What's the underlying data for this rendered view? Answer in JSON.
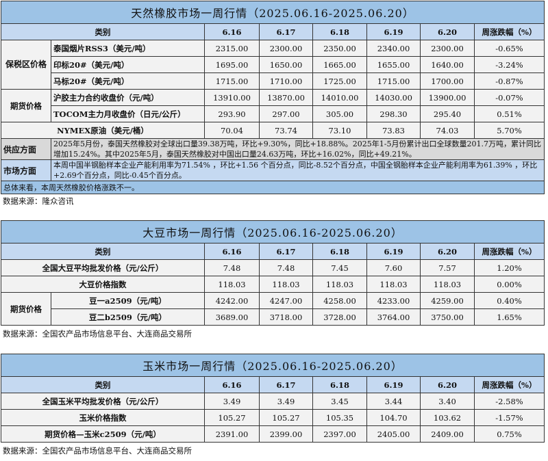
{
  "rubber": {
    "title": "天然橡胶市场一周行情（2025.06.16-2025.06.20）",
    "headers": [
      "类别",
      "6.16",
      "6.17",
      "6.18",
      "6.19",
      "6.20",
      "周涨跌幅（%）"
    ],
    "group_bonded": "保税区价格",
    "group_futures": "期货价格",
    "rows": [
      {
        "name": "泰国烟片RSS3（美元/吨）",
        "values": [
          "2315.00",
          "2300.00",
          "2350.00",
          "2340.00",
          "2300.00",
          "-0.65%"
        ]
      },
      {
        "name": "印标20#（美元/吨）",
        "values": [
          "1695.00",
          "1650.00",
          "1665.00",
          "1655.00",
          "1640.00",
          "-3.24%"
        ]
      },
      {
        "name": "马标20#（美元/吨）",
        "values": [
          "1715.00",
          "1710.00",
          "1725.00",
          "1715.00",
          "1700.00",
          "-0.87%"
        ]
      },
      {
        "name": "沪胶主力合约收盘价（元/吨）",
        "values": [
          "13910.00",
          "13870.00",
          "14010.00",
          "14030.00",
          "13900.00",
          "-0.07%"
        ]
      },
      {
        "name": "TOCOM主力月收盘价（日元/公斤）",
        "values": [
          "293.90",
          "297.00",
          "305.00",
          "298.30",
          "295.40",
          "0.51%"
        ]
      },
      {
        "name": "NYMEX原油（美元/桶）",
        "values": [
          "70.04",
          "73.74",
          "73.10",
          "73.83",
          "74.03",
          "5.70%"
        ]
      }
    ],
    "supply_label": "供应方面",
    "supply_text": "2025年5月份，泰国天然橡胶对全球出口量39.38万吨，环比+9.30%，同比+18.88%。2025年1-5月份累计出口全球数量201.7万吨，累计同比增加15.24%。其中2025年5月，泰国天然橡胶对中国出口量24.63万吨，环比+16.02%，同比+49.21%。",
    "market_label": "市场方面",
    "market_text": "本周中国半钢胎样本企业产能利用率为71.54% ，环比+1.56 个百分点，同比-8.52个百分点，中国全钢胎样本企业产能利用率为61.39% ，环比 +2.69个百分点，同比-0.45个百分点。",
    "summary": "总体来看，本周天然橡胶价格涨跌不一。",
    "source": "数据来源：隆众咨讯"
  },
  "soybean": {
    "title": "大豆市场一周行情（2025.06.16-2025.06.20）",
    "headers": [
      "类别",
      "6.16",
      "6.17",
      "6.18",
      "6.19",
      "6.20",
      "周涨跌幅（%）"
    ],
    "group_futures": "期货价格",
    "rows": [
      {
        "name": "全国大豆平均批发价格（元/公斤）",
        "values": [
          "7.48",
          "7.48",
          "7.45",
          "7.60",
          "7.57",
          "1.20%"
        ]
      },
      {
        "name": "大豆价格指数",
        "values": [
          "118.03",
          "118.03",
          "118.03",
          "118.03",
          "118.03",
          "0.00%"
        ]
      },
      {
        "name": "豆一a2509（元/吨）",
        "values": [
          "4242.00",
          "4247.00",
          "4258.00",
          "4233.00",
          "4259.00",
          "0.40%"
        ]
      },
      {
        "name": "豆二b2509（元/吨）",
        "values": [
          "3689.00",
          "3718.00",
          "3728.00",
          "3764.00",
          "3750.00",
          "1.65%"
        ]
      }
    ],
    "source": "数据来源：全国农产品市场信息平台、大连商品交易所"
  },
  "corn": {
    "title": "玉米市场一周行情（2025.06.16-2025.06.20）",
    "headers": [
      "类别",
      "6.16",
      "6.17",
      "6.18",
      "6.19",
      "6.20",
      "周涨跌幅（%）"
    ],
    "rows": [
      {
        "name": "全国玉米平均批发价格（元/公斤）",
        "values": [
          "3.49",
          "3.49",
          "3.45",
          "3.44",
          "3.40",
          "-2.58%"
        ]
      },
      {
        "name": "玉米价格指数",
        "values": [
          "105.27",
          "105.27",
          "105.35",
          "104.70",
          "103.62",
          "-1.57%"
        ]
      },
      {
        "name": "期货价格—玉米c2509（元/吨）",
        "values": [
          "2391.00",
          "2399.00",
          "2397.00",
          "2405.00",
          "2409.00",
          "0.75%"
        ]
      }
    ],
    "source": "数据来源：全国农产品市场信息平台、大连商品交易所"
  },
  "colors": {
    "title_bg": "#9dc3e6",
    "header_bg": "#c5d9f1",
    "row_bg": "#f2f2f2",
    "supply_bg": "#d9d9d9"
  }
}
